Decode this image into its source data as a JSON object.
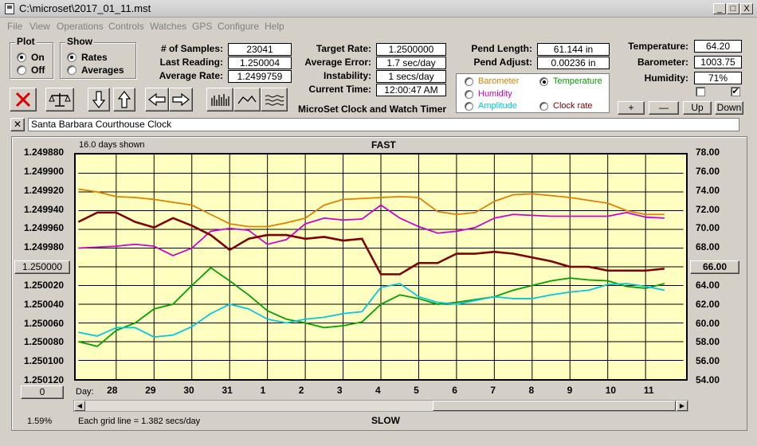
{
  "window": {
    "title": "C:\\microset\\2017_01_11.mst",
    "buttons": [
      "_",
      "□",
      "X"
    ]
  },
  "menu": [
    "File",
    "View",
    "Operations",
    "Controls",
    "Watches",
    "GPS",
    "Configure",
    "Help"
  ],
  "plot_group": {
    "title": "Plot",
    "options": [
      "On",
      "Off"
    ],
    "selected": "On"
  },
  "show_group": {
    "title": "Show",
    "options": [
      "Rates",
      "Averages"
    ],
    "selected": "Rates"
  },
  "stats": {
    "samples_label": "# of Samples:",
    "samples": "23041",
    "last_label": "Last Reading:",
    "last": "1.250004",
    "avg_label": "Average Rate:",
    "avg": "1.2499759"
  },
  "targets": {
    "target_label": "Target Rate:",
    "target": "1.2500000",
    "err_label": "Average Error:",
    "err": "1.7 sec/day",
    "inst_label": "Instability:",
    "inst": "1 secs/day",
    "time_label": "Current Time:",
    "time": "12:00:47 AM"
  },
  "app_caption": "MicroSet Clock and Watch Timer",
  "pendulum": {
    "length_label": "Pend Length:",
    "length": "61.144 in",
    "adjust_label": "Pend Adjust:",
    "adjust": "0.00236 in"
  },
  "sensors": [
    {
      "label": "Barometer",
      "color": "#e08000",
      "selected": false
    },
    {
      "label": "Temperature",
      "color": "#00a000",
      "selected": true
    },
    {
      "label": "Humidity",
      "color": "#d000d0",
      "selected": false
    },
    {
      "label": "Amplitude",
      "color": "#00c8e0",
      "selected": false
    },
    {
      "label": "Clock rate",
      "color": "#800000",
      "selected": false
    }
  ],
  "environment": {
    "temp_label": "Temperature:",
    "temp": "64.20",
    "baro_label": "Barometer:",
    "baro": "1003.75",
    "hum_label": "Humidity:",
    "hum": "71%",
    "check1": false,
    "check2": true
  },
  "adjust_buttons": [
    "+",
    "—",
    "Up",
    "Down"
  ],
  "clock_name": "Santa Barbara Courthouse Clock",
  "clear_button": "✕",
  "toolbar_icons": [
    "stop-icon",
    "balance-scale-icon",
    "arrow-down-icon",
    "arrow-up-icon",
    "arrow-left-icon",
    "arrow-right-icon",
    "bar-plot-icon",
    "line-plot-icon",
    "smooth-plot-icon"
  ],
  "chart_data": {
    "type": "line",
    "days_shown": "16.0 days shown",
    "top_label": "FAST",
    "bottom_label": "SLOW",
    "grid_note": "Each grid line = 1.382 secs/day",
    "percent": "1.59%",
    "left_reset_button": "0",
    "x_prefix": "Day:",
    "x_ticks": [
      "28",
      "29",
      "30",
      "31",
      "1",
      "2",
      "3",
      "4",
      "5",
      "6",
      "7",
      "8",
      "9",
      "10",
      "11"
    ],
    "y_left_ticks": [
      "1.249880",
      "1.249900",
      "1.249920",
      "1.249940",
      "1.249960",
      "1.249980",
      "1.250000",
      "1.250020",
      "1.250040",
      "1.250060",
      "1.250080",
      "1.250100",
      "1.250120"
    ],
    "y_left_center_button": "1.250000",
    "y_right_ticks": [
      "78.00",
      "76.00",
      "74.00",
      "72.00",
      "70.00",
      "68.00",
      "66.00",
      "64.00",
      "62.00",
      "60.00",
      "58.00",
      "56.00",
      "54.00"
    ],
    "y_right_center_button": "66.00",
    "ylim_left": [
      1.24988,
      1.25012
    ],
    "ylim_right": [
      54,
      78
    ],
    "x_start": 27,
    "x_span": 16,
    "grid": true,
    "series": [
      {
        "name": "Barometer",
        "color": "#e08000",
        "axis": "right",
        "x": [
          27,
          27.5,
          28,
          28.5,
          29,
          29.5,
          30,
          30.5,
          31,
          31.5,
          32,
          32.5,
          33,
          33.5,
          34,
          34.5,
          35,
          35.5,
          36,
          36.5,
          37,
          37.5,
          38,
          38.5,
          39,
          39.5,
          40,
          40.5,
          41,
          41.5,
          42,
          42.5
        ],
        "y": [
          74.3,
          74.0,
          73.5,
          73.4,
          73.2,
          72.9,
          72.6,
          71.6,
          70.6,
          70.3,
          70.3,
          70.7,
          71.2,
          72.6,
          73.2,
          73.3,
          73.4,
          73.5,
          73.4,
          71.9,
          71.6,
          71.8,
          73.0,
          73.7,
          73.8,
          73.6,
          73.4,
          73.1,
          72.8,
          72.0,
          71.6,
          71.6
        ]
      },
      {
        "name": "Temperature",
        "color": "#00a000",
        "axis": "right",
        "x": [
          27,
          27.5,
          28,
          28.5,
          29,
          29.5,
          30,
          30.5,
          31,
          31.5,
          32,
          32.5,
          33,
          33.5,
          34,
          34.5,
          35,
          35.5,
          36,
          36.5,
          37,
          37.5,
          38,
          38.5,
          39,
          39.5,
          40,
          40.5,
          41,
          41.5,
          42,
          42.5
        ],
        "y": [
          58.0,
          57.5,
          59.2,
          60.0,
          61.5,
          62.0,
          64.0,
          65.9,
          64.5,
          63.0,
          61.3,
          60.4,
          60.0,
          59.5,
          59.7,
          60.1,
          62.0,
          63.0,
          62.6,
          62.0,
          62.2,
          62.5,
          62.8,
          63.5,
          64.0,
          64.5,
          64.8,
          64.6,
          64.5,
          63.9,
          63.7,
          64.2
        ]
      },
      {
        "name": "Humidity",
        "color": "#d000d0",
        "axis": "right",
        "x": [
          27,
          27.5,
          28,
          28.5,
          29,
          29.5,
          30,
          30.5,
          31,
          31.5,
          32,
          32.5,
          33,
          33.5,
          34,
          34.5,
          35,
          35.5,
          36,
          36.5,
          37,
          37.5,
          38,
          38.5,
          39,
          39.5,
          40,
          40.5,
          41,
          41.5,
          42,
          42.5
        ],
        "y": [
          68.0,
          68.1,
          68.2,
          68.4,
          68.2,
          67.2,
          68.0,
          69.8,
          70.1,
          69.9,
          68.4,
          68.9,
          70.6,
          71.2,
          71.0,
          71.1,
          72.6,
          71.2,
          70.3,
          69.6,
          69.8,
          70.2,
          71.2,
          71.6,
          71.5,
          71.4,
          71.4,
          71.4,
          71.4,
          71.8,
          71.3,
          71.2
        ]
      },
      {
        "name": "Amplitude",
        "color": "#00c8e0",
        "axis": "right",
        "x": [
          27,
          27.5,
          28,
          28.5,
          29,
          29.5,
          30,
          30.5,
          31,
          31.5,
          32,
          32.5,
          33,
          33.5,
          34,
          34.5,
          35,
          35.5,
          36,
          36.5,
          37,
          37.5,
          38,
          38.5,
          39,
          39.5,
          40,
          40.5,
          41,
          41.5,
          42,
          42.5
        ],
        "y": [
          59.0,
          58.6,
          59.5,
          59.5,
          58.5,
          58.7,
          59.6,
          61.0,
          62.0,
          61.5,
          60.4,
          60.0,
          60.4,
          60.6,
          61.0,
          61.2,
          63.8,
          64.2,
          62.8,
          62.2,
          62.0,
          62.4,
          62.8,
          62.6,
          62.6,
          63.0,
          63.3,
          63.5,
          64.1,
          64.2,
          63.9,
          63.5
        ]
      },
      {
        "name": "Clock rate",
        "color": "#800000",
        "axis": "left",
        "x": [
          27,
          27.5,
          28,
          28.5,
          29,
          29.5,
          30,
          30.5,
          31,
          31.5,
          32,
          32.5,
          33,
          33.5,
          34,
          34.5,
          35,
          35.5,
          36,
          36.5,
          37,
          37.5,
          38,
          38.5,
          39,
          39.5,
          40,
          40.5,
          41,
          41.5,
          42,
          42.5
        ],
        "y": [
          1.249952,
          1.249942,
          1.249942,
          1.249952,
          1.249958,
          1.249948,
          1.249956,
          1.249966,
          1.249982,
          1.24997,
          1.249966,
          1.249966,
          1.24997,
          1.249968,
          1.249972,
          1.24997,
          1.250008,
          1.250008,
          1.249996,
          1.249996,
          1.249986,
          1.249986,
          1.249984,
          1.249986,
          1.24999,
          1.249994,
          1.25,
          1.25,
          1.250004,
          1.250004,
          1.250004,
          1.250002
        ]
      }
    ]
  }
}
